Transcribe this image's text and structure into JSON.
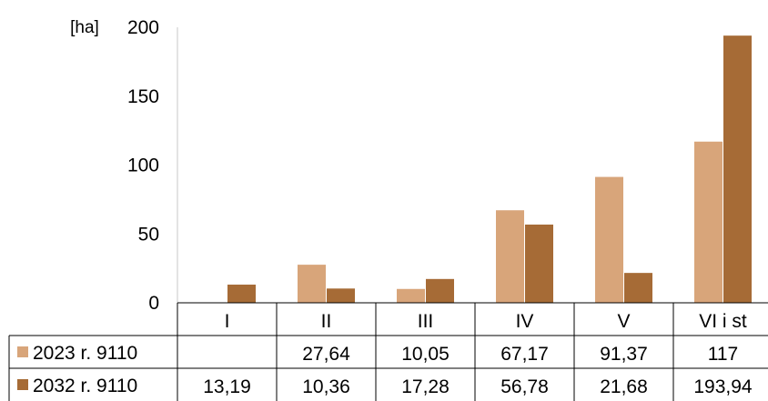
{
  "chart_data": {
    "type": "bar",
    "ylabel": "[ha]",
    "ylim": [
      0,
      200
    ],
    "yticks": [
      0,
      50,
      100,
      150,
      200
    ],
    "grid": false,
    "legend": "table-left",
    "categories": [
      "I",
      "II",
      "III",
      "IV",
      "V",
      "VI i st"
    ],
    "series": [
      {
        "name": "2023 r. 9110",
        "color": "#d8a57a",
        "values": [
          null,
          27.64,
          10.05,
          67.17,
          91.37,
          117
        ],
        "labels": [
          "",
          "27,64",
          "10,05",
          "67,17",
          "91,37",
          "117"
        ]
      },
      {
        "name": "2032 r. 9110",
        "color": "#a66b36",
        "values": [
          13.19,
          10.36,
          17.28,
          56.78,
          21.68,
          193.94
        ],
        "labels": [
          "13,19",
          "10,36",
          "17,28",
          "56,78",
          "21,68",
          "193,94"
        ]
      }
    ]
  }
}
